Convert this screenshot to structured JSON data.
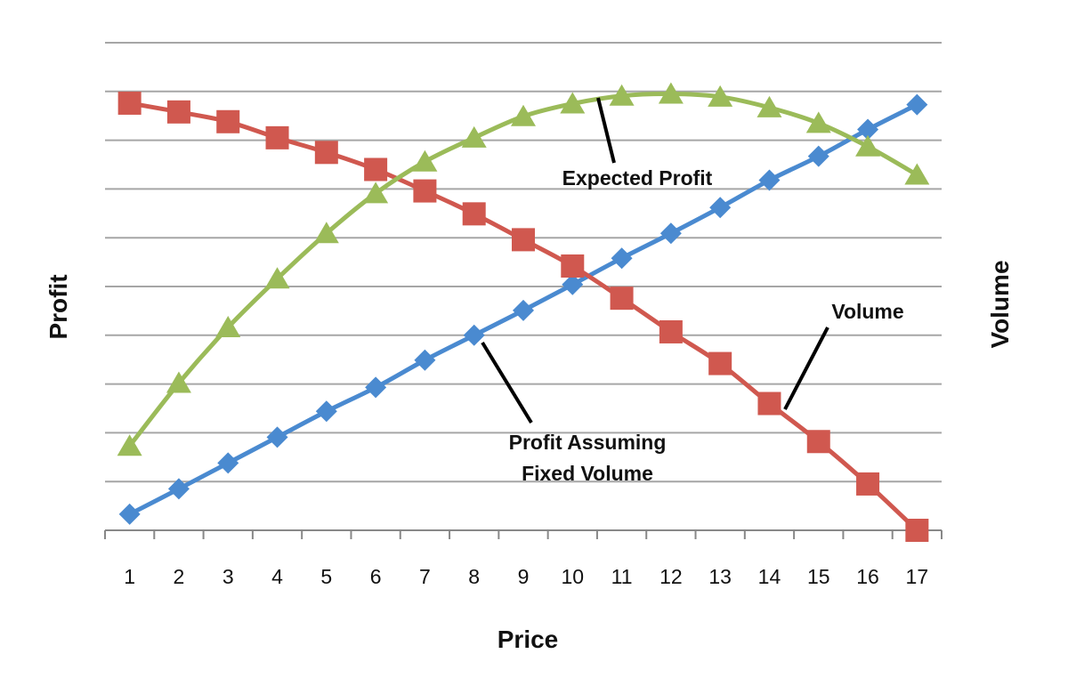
{
  "chart_data": {
    "type": "line",
    "title": "",
    "xlabel": "Price",
    "ylabel": "Profit",
    "y2label": "Volume",
    "categories": [
      "1",
      "2",
      "3",
      "4",
      "5",
      "6",
      "7",
      "8",
      "9",
      "10",
      "11",
      "12",
      "13",
      "14",
      "15",
      "16",
      "17"
    ],
    "ylim": [
      0,
      10
    ],
    "grid": true,
    "y_tick_labels_shown": false,
    "series": [
      {
        "name": "Volume",
        "color": "#4A8AD0",
        "marker": "diamond",
        "values": [
          0.33,
          0.85,
          1.38,
          1.91,
          2.44,
          2.93,
          3.49,
          4.0,
          4.51,
          5.04,
          5.58,
          6.09,
          6.62,
          7.18,
          7.67,
          8.22,
          8.73
        ]
      },
      {
        "name": "Profit Assuming Fixed Volume",
        "color": "#D0584F",
        "marker": "square",
        "values": [
          8.76,
          8.58,
          8.38,
          8.05,
          7.75,
          7.4,
          6.96,
          6.49,
          5.96,
          5.42,
          4.76,
          4.07,
          3.42,
          2.6,
          1.82,
          0.95,
          0.0
        ]
      },
      {
        "name": "Expected Profit",
        "color": "#9BBB59",
        "marker": "triangle",
        "values": [
          1.73,
          3.02,
          4.16,
          5.16,
          6.09,
          6.91,
          7.56,
          8.05,
          8.49,
          8.75,
          8.91,
          8.95,
          8.89,
          8.67,
          8.35,
          7.87,
          7.29
        ]
      }
    ],
    "annotations": {
      "expected_profit": "Expected Profit",
      "volume": "Volume",
      "fixed_line1": "Profit Assuming",
      "fixed_line2": "Fixed Volume"
    }
  }
}
